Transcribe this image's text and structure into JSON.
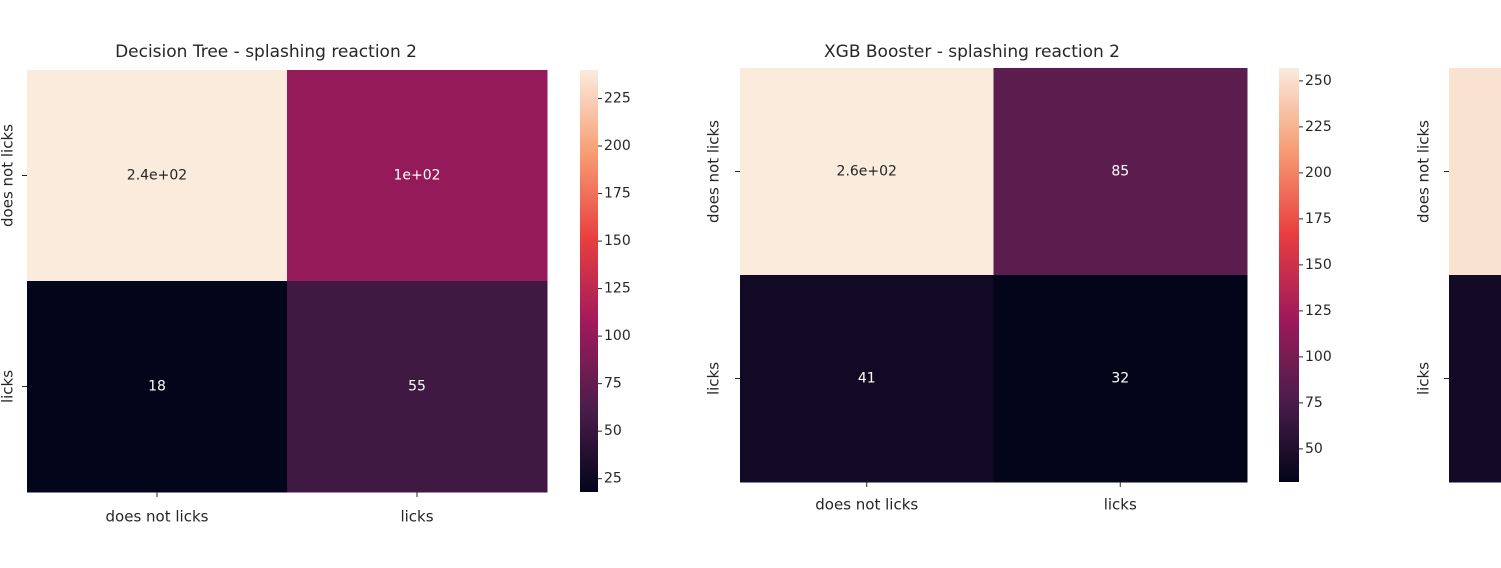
{
  "chart_data": [
    {
      "type": "heatmap",
      "title": "Decision Tree - splashing reaction 2",
      "x_categories": [
        "does not licks",
        "licks"
      ],
      "y_categories": [
        "does not licks",
        "licks"
      ],
      "values": [
        [
          240,
          100
        ],
        [
          18,
          55
        ]
      ],
      "value_labels": [
        [
          "2.4e+02",
          "1e+02"
        ],
        [
          "18",
          "55"
        ]
      ],
      "zlim": [
        18,
        240
      ],
      "zticks": [
        25,
        50,
        75,
        100,
        125,
        150,
        175,
        200,
        225
      ],
      "colormap": [
        "#03051a",
        "#4c1d4b",
        "#a11a5b",
        "#e83f3f",
        "#f69c73",
        "#faebdd"
      ]
    },
    {
      "type": "heatmap",
      "title": "XGB Booster - splashing reaction 2",
      "x_categories": [
        "does not licks",
        "licks"
      ],
      "y_categories": [
        "does not licks",
        "licks"
      ],
      "values": [
        [
          257,
          85
        ],
        [
          41,
          32
        ]
      ],
      "value_labels": [
        [
          "2.6e+02",
          "85"
        ],
        [
          "41",
          "32"
        ]
      ],
      "zlim": [
        32,
        257
      ],
      "zticks": [
        50,
        75,
        100,
        125,
        150,
        175,
        200,
        225,
        250
      ],
      "colormap": [
        "#03051a",
        "#4c1d4b",
        "#a11a5b",
        "#e83f3f",
        "#f69c73",
        "#faebdd"
      ]
    },
    {
      "type": "heatmap",
      "y_categories": [
        "does not licks",
        "licks"
      ],
      "values": [
        [
          255
        ],
        [
          40
        ]
      ],
      "zlim": [
        30,
        260
      ],
      "colormap": [
        "#03051a",
        "#4c1d4b",
        "#a11a5b",
        "#e83f3f",
        "#f69c73",
        "#faebdd"
      ]
    }
  ]
}
